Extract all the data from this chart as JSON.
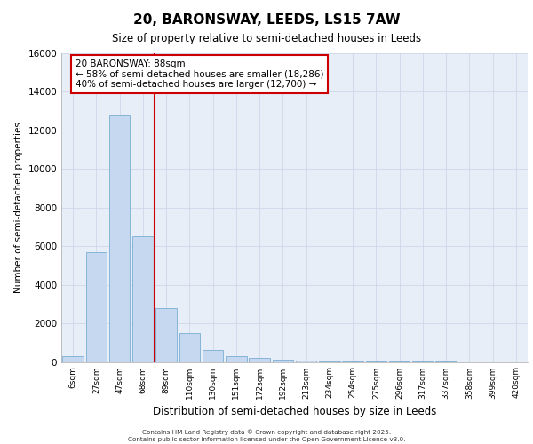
{
  "title_line1": "20, BARONSWAY, LEEDS, LS15 7AW",
  "title_line2": "Size of property relative to semi-detached houses in Leeds",
  "xlabel": "Distribution of semi-detached houses by size in Leeds",
  "ylabel": "Number of semi-detached properties",
  "categories": [
    "6sqm",
    "27sqm",
    "47sqm",
    "68sqm",
    "89sqm",
    "110sqm",
    "130sqm",
    "151sqm",
    "172sqm",
    "192sqm",
    "213sqm",
    "234sqm",
    "254sqm",
    "275sqm",
    "296sqm",
    "317sqm",
    "337sqm",
    "358sqm",
    "399sqm",
    "420sqm"
  ],
  "values": [
    300,
    5700,
    12800,
    6500,
    2800,
    1500,
    600,
    300,
    200,
    100,
    60,
    30,
    10,
    5,
    2,
    1,
    1,
    0,
    0,
    0
  ],
  "bar_color": "#c5d8ef",
  "bar_edge_color": "#7aadd4",
  "property_label": "20 BARONSWAY: 88sqm",
  "annotation_smaller": "← 58% of semi-detached houses are smaller (18,286)",
  "annotation_larger": "40% of semi-detached houses are larger (12,700) →",
  "vline_color": "#cc0000",
  "annotation_box_color": "#cc0000",
  "footer_line1": "Contains HM Land Registry data © Crown copyright and database right 2025.",
  "footer_line2": "Contains public sector information licensed under the Open Government Licence v3.0.",
  "ylim": [
    0,
    16000
  ],
  "yticks": [
    0,
    2000,
    4000,
    6000,
    8000,
    10000,
    12000,
    14000,
    16000
  ],
  "grid_color": "#c8d4e8",
  "background_color": "#e8eef8",
  "vline_x": 3.5
}
